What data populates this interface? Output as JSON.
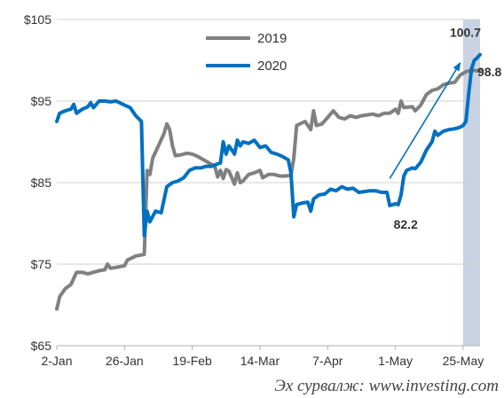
{
  "chart_data": {
    "type": "line",
    "title": "",
    "xlabel": "",
    "ylabel": "",
    "x_ticks": [
      "2-Jan",
      "26-Jan",
      "19-Feb",
      "14-Mar",
      "7-Apr",
      "1-May",
      "25-May"
    ],
    "y_ticks": [
      "$65",
      "$75",
      "$85",
      "$95",
      "$105"
    ],
    "ylim": [
      65,
      105
    ],
    "xlim": [
      "2-Jan",
      "31-May"
    ],
    "grid": "horizontal",
    "legend_placement": "top-center",
    "highlight_band": {
      "from": "25-May",
      "to": "31-May",
      "color": "#c9d3e3"
    },
    "series": [
      {
        "name": "2019",
        "color": "#808080",
        "points": [
          [
            "2-Jan",
            69.5
          ],
          [
            "3-Jan",
            71
          ],
          [
            "5-Jan",
            72
          ],
          [
            "7-Jan",
            72.5
          ],
          [
            "9-Jan",
            74
          ],
          [
            "11-Jan",
            74
          ],
          [
            "13-Jan",
            73.8
          ],
          [
            "15-Jan",
            74
          ],
          [
            "17-Jan",
            74.2
          ],
          [
            "19-Jan",
            74.3
          ],
          [
            "20-Jan",
            75
          ],
          [
            "21-Jan",
            74.5
          ],
          [
            "23-Jan",
            74.6
          ],
          [
            "26-Jan",
            74.8
          ],
          [
            "27-Jan",
            75.5
          ],
          [
            "30-Jan",
            76
          ],
          [
            "2-Feb",
            76.2
          ],
          [
            "3-Feb",
            86.5
          ],
          [
            "4-Feb",
            86
          ],
          [
            "5-Feb",
            88
          ],
          [
            "7-Feb",
            89.5
          ],
          [
            "9-Feb",
            91
          ],
          [
            "10-Feb",
            92.2
          ],
          [
            "11-Feb",
            91.5
          ],
          [
            "12-Feb",
            89.5
          ],
          [
            "13-Feb",
            88.3
          ],
          [
            "15-Feb",
            88.4
          ],
          [
            "17-Feb",
            88.6
          ],
          [
            "19-Feb",
            88.5
          ],
          [
            "21-Feb",
            88.2
          ],
          [
            "23-Feb",
            87.8
          ],
          [
            "25-Feb",
            87.4
          ],
          [
            "27-Feb",
            87
          ],
          [
            "28-Feb",
            85.7
          ],
          [
            "29-Feb",
            86.5
          ],
          [
            "1-Mar",
            85.5
          ],
          [
            "2-Mar",
            86.6
          ],
          [
            "3-Mar",
            86.4
          ],
          [
            "5-Mar",
            84.8
          ],
          [
            "6-Mar",
            86.2
          ],
          [
            "7-Mar",
            85
          ],
          [
            "8-Mar",
            85.2
          ],
          [
            "10-Mar",
            86
          ],
          [
            "12-Mar",
            86.2
          ],
          [
            "14-Mar",
            86.5
          ],
          [
            "15-Mar",
            85.6
          ],
          [
            "17-Mar",
            86
          ],
          [
            "19-Mar",
            86
          ],
          [
            "21-Mar",
            85.8
          ],
          [
            "23-Mar",
            85.8
          ],
          [
            "25-Mar",
            85.9
          ],
          [
            "26-Mar",
            88
          ],
          [
            "27-Mar",
            92
          ],
          [
            "30-Mar",
            92.5
          ],
          [
            "1-Apr",
            91.5
          ],
          [
            "2-Apr",
            93.8
          ],
          [
            "3-Apr",
            92
          ],
          [
            "5-Apr",
            92.2
          ],
          [
            "7-Apr",
            93
          ],
          [
            "9-Apr",
            93.8
          ],
          [
            "11-Apr",
            93
          ],
          [
            "13-Apr",
            92.8
          ],
          [
            "15-Apr",
            93.2
          ],
          [
            "17-Apr",
            93
          ],
          [
            "19-Apr",
            93.2
          ],
          [
            "21-Apr",
            93.3
          ],
          [
            "23-Apr",
            93.4
          ],
          [
            "25-Apr",
            93.2
          ],
          [
            "27-Apr",
            93.5
          ],
          [
            "29-Apr",
            93.5
          ],
          [
            "1-May",
            94
          ],
          [
            "2-May",
            93.5
          ],
          [
            "3-May",
            95
          ],
          [
            "4-May",
            94.2
          ],
          [
            "7-May",
            94.3
          ],
          [
            "8-May",
            93.8
          ],
          [
            "10-May",
            94.5
          ],
          [
            "12-May",
            95.8
          ],
          [
            "14-May",
            96.3
          ],
          [
            "16-May",
            96.5
          ],
          [
            "18-May",
            97
          ],
          [
            "20-May",
            97.2
          ],
          [
            "22-May",
            97.3
          ],
          [
            "24-May",
            98.2
          ],
          [
            "26-May",
            98.6
          ],
          [
            "28-May",
            98.8
          ],
          [
            "30-May",
            98.7
          ],
          [
            "31-May",
            98.8
          ]
        ]
      },
      {
        "name": "2020",
        "color": "#0070c0",
        "points": [
          [
            "2-Jan",
            92.5
          ],
          [
            "3-Jan",
            93.5
          ],
          [
            "5-Jan",
            93.8
          ],
          [
            "7-Jan",
            94
          ],
          [
            "8-Jan",
            94.6
          ],
          [
            "9-Jan",
            93.5
          ],
          [
            "11-Jan",
            94
          ],
          [
            "13-Jan",
            94.3
          ],
          [
            "14-Jan",
            94.8
          ],
          [
            "15-Jan",
            94.2
          ],
          [
            "17-Jan",
            95
          ],
          [
            "19-Jan",
            95
          ],
          [
            "21-Jan",
            94.9
          ],
          [
            "23-Jan",
            95
          ],
          [
            "26-Jan",
            94.5
          ],
          [
            "28-Jan",
            94.2
          ],
          [
            "30-Jan",
            93.2
          ],
          [
            "1-Feb",
            92.5
          ],
          [
            "2-Feb",
            78.5
          ],
          [
            "3-Feb",
            81.5
          ],
          [
            "4-Feb",
            80.2
          ],
          [
            "6-Feb",
            81.5
          ],
          [
            "8-Feb",
            81.3
          ],
          [
            "10-Feb",
            84.5
          ],
          [
            "12-Feb",
            85
          ],
          [
            "14-Feb",
            85.2
          ],
          [
            "16-Feb",
            85.6
          ],
          [
            "18-Feb",
            86.5
          ],
          [
            "20-Feb",
            86.8
          ],
          [
            "22-Feb",
            86.8
          ],
          [
            "24-Feb",
            87
          ],
          [
            "26-Feb",
            87
          ],
          [
            "28-Feb",
            87.3
          ],
          [
            "29-Feb",
            87.4
          ],
          [
            "1-Mar",
            90
          ],
          [
            "2-Mar",
            88.5
          ],
          [
            "3-Mar",
            89.5
          ],
          [
            "4-Mar",
            89
          ],
          [
            "5-Mar",
            88.5
          ],
          [
            "6-Mar",
            90.2
          ],
          [
            "7-Mar",
            89.5
          ],
          [
            "8-Mar",
            90
          ],
          [
            "10-Mar",
            89.8
          ],
          [
            "12-Mar",
            90.2
          ],
          [
            "14-Mar",
            89.3
          ],
          [
            "16-Mar",
            89.5
          ],
          [
            "18-Mar",
            88.7
          ],
          [
            "20-Mar",
            88.5
          ],
          [
            "22-Mar",
            88.2
          ],
          [
            "24-Mar",
            87.8
          ],
          [
            "25-Mar",
            86.2
          ],
          [
            "26-Mar",
            80.8
          ],
          [
            "27-Mar",
            82.3
          ],
          [
            "29-Mar",
            82.5
          ],
          [
            "31-Mar",
            82.6
          ],
          [
            "1-Apr",
            81.5
          ],
          [
            "2-Apr",
            83
          ],
          [
            "4-Apr",
            83.5
          ],
          [
            "6-Apr",
            83.6
          ],
          [
            "8-Apr",
            84.2
          ],
          [
            "10-Apr",
            84
          ],
          [
            "12-Apr",
            84.5
          ],
          [
            "14-Apr",
            84.2
          ],
          [
            "16-Apr",
            84.3
          ],
          [
            "18-Apr",
            83.8
          ],
          [
            "20-Apr",
            83.9
          ],
          [
            "22-Apr",
            84
          ],
          [
            "24-Apr",
            84
          ],
          [
            "26-Apr",
            83.8
          ],
          [
            "28-Apr",
            83.8
          ],
          [
            "29-Apr",
            82.2
          ],
          [
            "1-May",
            82.4
          ],
          [
            "2-May",
            82.3
          ],
          [
            "3-May",
            83.5
          ],
          [
            "4-May",
            85.8
          ],
          [
            "5-May",
            86.5
          ],
          [
            "7-May",
            86.8
          ],
          [
            "8-May",
            86.7
          ],
          [
            "10-May",
            87.5
          ],
          [
            "12-May",
            89
          ],
          [
            "14-May",
            90
          ],
          [
            "15-May",
            91.3
          ],
          [
            "16-May",
            90.8
          ],
          [
            "18-May",
            91.3
          ],
          [
            "20-May",
            91.5
          ],
          [
            "22-May",
            91.6
          ],
          [
            "24-May",
            91.8
          ],
          [
            "25-May",
            92
          ],
          [
            "26-May",
            92.5
          ],
          [
            "27-May",
            96
          ],
          [
            "28-May",
            99
          ],
          [
            "29-May",
            100
          ],
          [
            "30-May",
            100.3
          ],
          [
            "31-May",
            100.7
          ]
        ]
      }
    ],
    "annotations": [
      {
        "text": "100.7",
        "series": "2020",
        "at": "31-May"
      },
      {
        "text": "98.8",
        "series": "2019",
        "at": "31-May"
      },
      {
        "text": "82.2",
        "series": "2020",
        "at": "29-Apr"
      }
    ],
    "trend_arrow": {
      "from": [
        "29-Apr",
        85.5
      ],
      "to": [
        "24-May",
        99.7
      ],
      "color": "#0070c0"
    }
  },
  "source_text": "Эх сурвалж: www.investing.com"
}
